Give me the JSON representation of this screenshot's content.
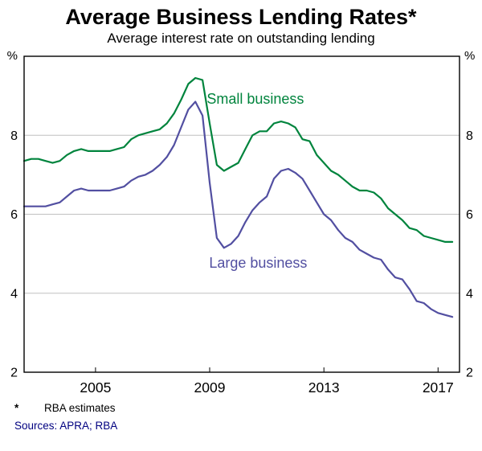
{
  "header": {
    "title": "Average Business Lending Rates*",
    "subtitle": "Average interest rate on outstanding lending"
  },
  "footer": {
    "footnote_marker": "*",
    "footnote_text": "RBA estimates",
    "sources": "Sources: APRA; RBA"
  },
  "colors": {
    "small_business_green": "#00843d",
    "large_business_purple": "#524fa1",
    "gridline_gray": "#c0c0c0",
    "axis_black": "#000000",
    "sources_navy": "#000080"
  },
  "chart_data": {
    "type": "line",
    "title": "Average Business Lending Rates*",
    "subtitle": "Average interest rate on outstanding lending",
    "xlabel": "",
    "ylabel": "%",
    "unit": "%",
    "ylim": [
      2,
      10
    ],
    "yticks": [
      2,
      4,
      6,
      8
    ],
    "gridlines": [
      4,
      6,
      8
    ],
    "xlim": [
      2002.5,
      2017.75
    ],
    "xticks": [
      2005,
      2009,
      2013,
      2017
    ],
    "grid": true,
    "legend_position": "inline-labels",
    "style": {
      "grid_color": "#c0c0c0",
      "axis_color": "#000000",
      "line_width": 2.2
    },
    "x": [
      2002.5,
      2002.75,
      2003,
      2003.25,
      2003.5,
      2003.75,
      2004,
      2004.25,
      2004.5,
      2004.75,
      2005,
      2005.25,
      2005.5,
      2005.75,
      2006,
      2006.25,
      2006.5,
      2006.75,
      2007,
      2007.25,
      2007.5,
      2007.75,
      2008,
      2008.25,
      2008.5,
      2008.75,
      2009,
      2009.25,
      2009.5,
      2009.75,
      2010,
      2010.25,
      2010.5,
      2010.75,
      2011,
      2011.25,
      2011.5,
      2011.75,
      2012,
      2012.25,
      2012.5,
      2012.75,
      2013,
      2013.25,
      2013.5,
      2013.75,
      2014,
      2014.25,
      2014.5,
      2014.75,
      2015,
      2015.25,
      2015.5,
      2015.75,
      2016,
      2016.25,
      2016.5,
      2016.75,
      2017,
      2017.25,
      2017.5
    ],
    "series": [
      {
        "id": "small-business",
        "name": "Small business",
        "color": "#00843d",
        "label": {
          "x": 2010.6,
          "y": 8.8
        },
        "values": [
          7.35,
          7.4,
          7.4,
          7.35,
          7.3,
          7.35,
          7.5,
          7.6,
          7.65,
          7.6,
          7.6,
          7.6,
          7.6,
          7.65,
          7.7,
          7.9,
          8.0,
          8.05,
          8.1,
          8.15,
          8.3,
          8.55,
          8.9,
          9.3,
          9.45,
          9.4,
          8.3,
          7.25,
          7.1,
          7.2,
          7.3,
          7.65,
          8.0,
          8.1,
          8.1,
          8.3,
          8.35,
          8.3,
          8.2,
          7.9,
          7.85,
          7.5,
          7.3,
          7.1,
          7.0,
          6.85,
          6.7,
          6.6,
          6.6,
          6.55,
          6.4,
          6.15,
          6.0,
          5.85,
          5.65,
          5.6,
          5.45,
          5.4,
          5.35,
          5.3,
          5.3
        ]
      },
      {
        "id": "large-business",
        "name": "Large business",
        "color": "#524fa1",
        "label": {
          "x": 2010.7,
          "y": 4.65
        },
        "values": [
          6.2,
          6.2,
          6.2,
          6.2,
          6.25,
          6.3,
          6.45,
          6.6,
          6.65,
          6.6,
          6.6,
          6.6,
          6.6,
          6.65,
          6.7,
          6.85,
          6.95,
          7.0,
          7.1,
          7.25,
          7.45,
          7.75,
          8.2,
          8.65,
          8.85,
          8.5,
          6.8,
          5.4,
          5.15,
          5.25,
          5.45,
          5.8,
          6.1,
          6.3,
          6.45,
          6.9,
          7.1,
          7.15,
          7.05,
          6.9,
          6.6,
          6.3,
          6.0,
          5.85,
          5.6,
          5.4,
          5.3,
          5.1,
          5.0,
          4.9,
          4.85,
          4.6,
          4.4,
          4.35,
          4.1,
          3.8,
          3.75,
          3.6,
          3.5,
          3.45,
          3.4
        ]
      }
    ]
  }
}
